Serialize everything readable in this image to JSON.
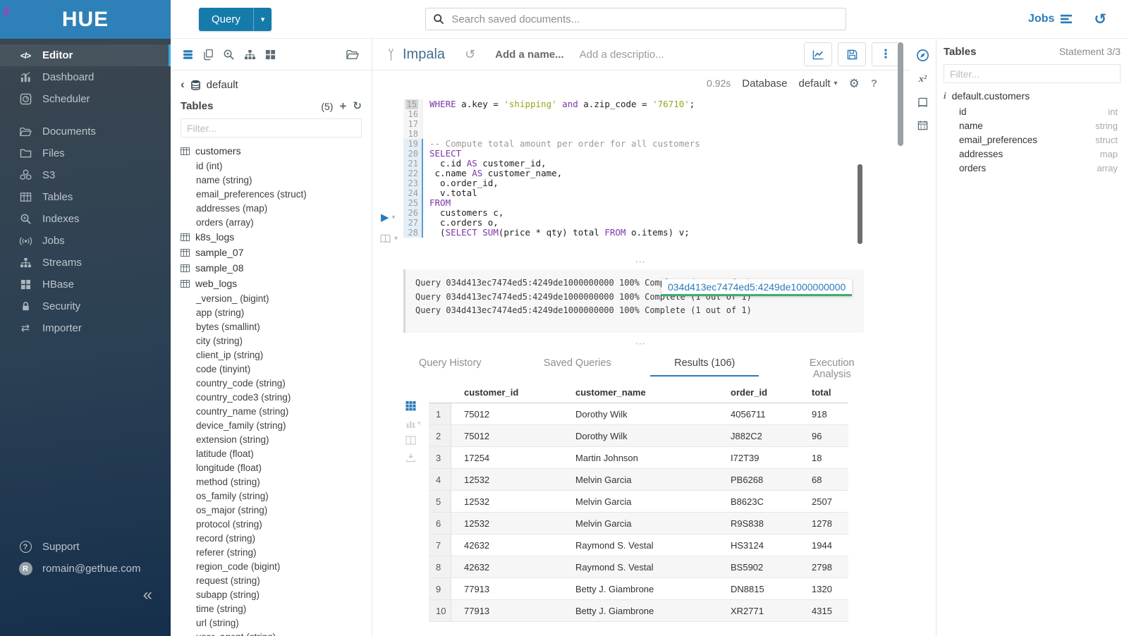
{
  "icons": {
    "editor_glyph": "</>",
    "importer": "⇄",
    "collapse": "«",
    "question": "?",
    "avatar_initial": "R",
    "back": "‹",
    "plus": "+",
    "refresh": "↻",
    "history": "↺",
    "kebab": "⋮",
    "gear": "⚙",
    "caret": "▾",
    "play": "▶",
    "handle": "⋯",
    "superscript_x2": "x²",
    "info": "i"
  },
  "colors": {
    "accent": "#2b7bb9",
    "header_blue": "#2e81b8",
    "button_blue": "#147bab",
    "active_cyan": "#35abe2",
    "keyword_purple": "#7d35a8",
    "string_olive": "#9aa41f",
    "comment_gray": "#999999",
    "progress_green": "#3fae6e",
    "logo_purple": "#8c4eb8"
  },
  "brand": {
    "logo_text": "HUE"
  },
  "topbar": {
    "query_label": "Query",
    "search_placeholder": "Search saved documents...",
    "jobs_label": "Jobs"
  },
  "sidebar": {
    "items": [
      {
        "label": "Editor"
      },
      {
        "label": "Dashboard"
      },
      {
        "label": "Scheduler"
      },
      {
        "label": "Documents"
      },
      {
        "label": "Files"
      },
      {
        "label": "S3"
      },
      {
        "label": "Tables"
      },
      {
        "label": "Indexes"
      },
      {
        "label": "Jobs"
      },
      {
        "label": "Streams"
      },
      {
        "label": "HBase"
      },
      {
        "label": "Security"
      },
      {
        "label": "Importer"
      }
    ],
    "support_label": "Support",
    "user_email": "romain@gethue.com"
  },
  "assist": {
    "database": "default",
    "tables_label": "Tables",
    "tables_count": "(5)",
    "filter_placeholder": "Filter...",
    "tree": [
      {
        "kind": "table",
        "label": "customers"
      },
      {
        "kind": "column",
        "label": "id (int)"
      },
      {
        "kind": "column",
        "label": "name (string)"
      },
      {
        "kind": "column",
        "label": "email_preferences (struct)"
      },
      {
        "kind": "column",
        "label": "addresses (map)"
      },
      {
        "kind": "column",
        "label": "orders (array)"
      },
      {
        "kind": "table",
        "label": "k8s_logs"
      },
      {
        "kind": "table",
        "label": "sample_07"
      },
      {
        "kind": "table",
        "label": "sample_08"
      },
      {
        "kind": "table",
        "label": "web_logs"
      },
      {
        "kind": "column",
        "label": "_version_ (bigint)"
      },
      {
        "kind": "column",
        "label": "app (string)"
      },
      {
        "kind": "column",
        "label": "bytes (smallint)"
      },
      {
        "kind": "column",
        "label": "city (string)"
      },
      {
        "kind": "column",
        "label": "client_ip (string)"
      },
      {
        "kind": "column",
        "label": "code (tinyint)"
      },
      {
        "kind": "column",
        "label": "country_code (string)"
      },
      {
        "kind": "column",
        "label": "country_code3 (string)"
      },
      {
        "kind": "column",
        "label": "country_name (string)"
      },
      {
        "kind": "column",
        "label": "device_family (string)"
      },
      {
        "kind": "column",
        "label": "extension (string)"
      },
      {
        "kind": "column",
        "label": "latitude (float)"
      },
      {
        "kind": "column",
        "label": "longitude (float)"
      },
      {
        "kind": "column",
        "label": "method (string)"
      },
      {
        "kind": "column",
        "label": "os_family (string)"
      },
      {
        "kind": "column",
        "label": "os_major (string)"
      },
      {
        "kind": "column",
        "label": "protocol (string)"
      },
      {
        "kind": "column",
        "label": "record (string)"
      },
      {
        "kind": "column",
        "label": "referer (string)"
      },
      {
        "kind": "column",
        "label": "region_code (bigint)"
      },
      {
        "kind": "column",
        "label": "request (string)"
      },
      {
        "kind": "column",
        "label": "subapp (string)"
      },
      {
        "kind": "column",
        "label": "time (string)"
      },
      {
        "kind": "column",
        "label": "url (string)"
      },
      {
        "kind": "column",
        "label": "user_agent (string)"
      }
    ]
  },
  "editor": {
    "engine": "Impala",
    "name_placeholder": "Add a name...",
    "description_placeholder": "Add a descriptio...",
    "duration": "0.92s",
    "database_label": "Database",
    "database_value": "default",
    "code_lines": [
      {
        "no": 15,
        "cur": true,
        "seg": [
          {
            "c": "kw",
            "t": "WHERE"
          },
          {
            "c": "pln",
            "t": " a.key = "
          },
          {
            "c": "str",
            "t": "'shipping'"
          },
          {
            "c": "pln",
            "t": " "
          },
          {
            "c": "kw",
            "t": "and"
          },
          {
            "c": "pln",
            "t": " a.zip_code = "
          },
          {
            "c": "str",
            "t": "'76710'"
          },
          {
            "c": "pln",
            "t": ";"
          }
        ]
      },
      {
        "no": 16,
        "seg": []
      },
      {
        "no": 17,
        "seg": []
      },
      {
        "no": 18,
        "seg": []
      },
      {
        "no": 19,
        "act": true,
        "seg": [
          {
            "c": "cmt",
            "t": "-- Compute total amount per order for all customers"
          }
        ]
      },
      {
        "no": 20,
        "act": true,
        "seg": [
          {
            "c": "kw",
            "t": "SELECT"
          }
        ]
      },
      {
        "no": 21,
        "act": true,
        "seg": [
          {
            "c": "pln",
            "t": "  c.id "
          },
          {
            "c": "kw",
            "t": "AS"
          },
          {
            "c": "pln",
            "t": " customer_id,"
          }
        ]
      },
      {
        "no": 22,
        "act": true,
        "seg": [
          {
            "c": "pln",
            "t": " c.name "
          },
          {
            "c": "kw",
            "t": "AS"
          },
          {
            "c": "pln",
            "t": " customer_name,"
          }
        ]
      },
      {
        "no": 23,
        "act": true,
        "seg": [
          {
            "c": "pln",
            "t": "  o.order_id,"
          }
        ]
      },
      {
        "no": 24,
        "act": true,
        "seg": [
          {
            "c": "pln",
            "t": "  v.total"
          }
        ]
      },
      {
        "no": 25,
        "act": true,
        "seg": [
          {
            "c": "kw",
            "t": "FROM"
          }
        ]
      },
      {
        "no": 26,
        "act": true,
        "seg": [
          {
            "c": "pln",
            "t": "  customers c,"
          }
        ]
      },
      {
        "no": 27,
        "act": true,
        "seg": [
          {
            "c": "pln",
            "t": "  c.orders o,"
          }
        ]
      },
      {
        "no": 28,
        "act": true,
        "seg": [
          {
            "c": "pln",
            "t": "  ("
          },
          {
            "c": "kw",
            "t": "SELECT"
          },
          {
            "c": "pln",
            "t": " "
          },
          {
            "c": "kw",
            "t": "SUM"
          },
          {
            "c": "pln",
            "t": "(price * qty) total "
          },
          {
            "c": "kw",
            "t": "FROM"
          },
          {
            "c": "pln",
            "t": " o.items) v;"
          }
        ]
      }
    ]
  },
  "log": {
    "lines": [
      "Query 034d413ec7474ed5:4249de1000000000 100% Complete (1 out of 1)",
      "Query 034d413ec7474ed5:4249de1000000000 100% Complete (1 out of 1)",
      "Query 034d413ec7474ed5:4249de1000000000 100% Complete (1 out of 1)"
    ],
    "tooltip_text": "034d413ec7474ed5:4249de1000000000"
  },
  "tabs": [
    {
      "label": "Query History"
    },
    {
      "label": "Saved Queries"
    },
    {
      "label": "Results (106)",
      "state": "active"
    },
    {
      "label": "Execution Analysis"
    }
  ],
  "results": {
    "columns": [
      "customer_id",
      "customer_name",
      "order_id",
      "total"
    ],
    "rows": [
      [
        "1",
        "75012",
        "Dorothy Wilk",
        "4056711",
        "918"
      ],
      [
        "2",
        "75012",
        "Dorothy Wilk",
        "J882C2",
        "96"
      ],
      [
        "3",
        "17254",
        "Martin Johnson",
        "I72T39",
        "18"
      ],
      [
        "4",
        "12532",
        "Melvin Garcia",
        "PB6268",
        "68"
      ],
      [
        "5",
        "12532",
        "Melvin Garcia",
        "B8623C",
        "2507"
      ],
      [
        "6",
        "12532",
        "Melvin Garcia",
        "R9S838",
        "1278"
      ],
      [
        "7",
        "42632",
        "Raymond S. Vestal",
        "HS3124",
        "1944"
      ],
      [
        "8",
        "42632",
        "Raymond S. Vestal",
        "BS5902",
        "2798"
      ],
      [
        "9",
        "77913",
        "Betty J. Giambrone",
        "DN8815",
        "1320"
      ],
      [
        "10",
        "77913",
        "Betty J. Giambrone",
        "XR2771",
        "4315"
      ]
    ]
  },
  "rightpanel": {
    "title": "Tables",
    "statement": "Statement 3/3",
    "filter_placeholder": "Filter...",
    "table_label": "default.customers",
    "columns": [
      {
        "name": "id",
        "type": "int"
      },
      {
        "name": "name",
        "type": "string"
      },
      {
        "name": "email_preferences",
        "type": "struct"
      },
      {
        "name": "addresses",
        "type": "map"
      },
      {
        "name": "orders",
        "type": "array"
      }
    ]
  }
}
